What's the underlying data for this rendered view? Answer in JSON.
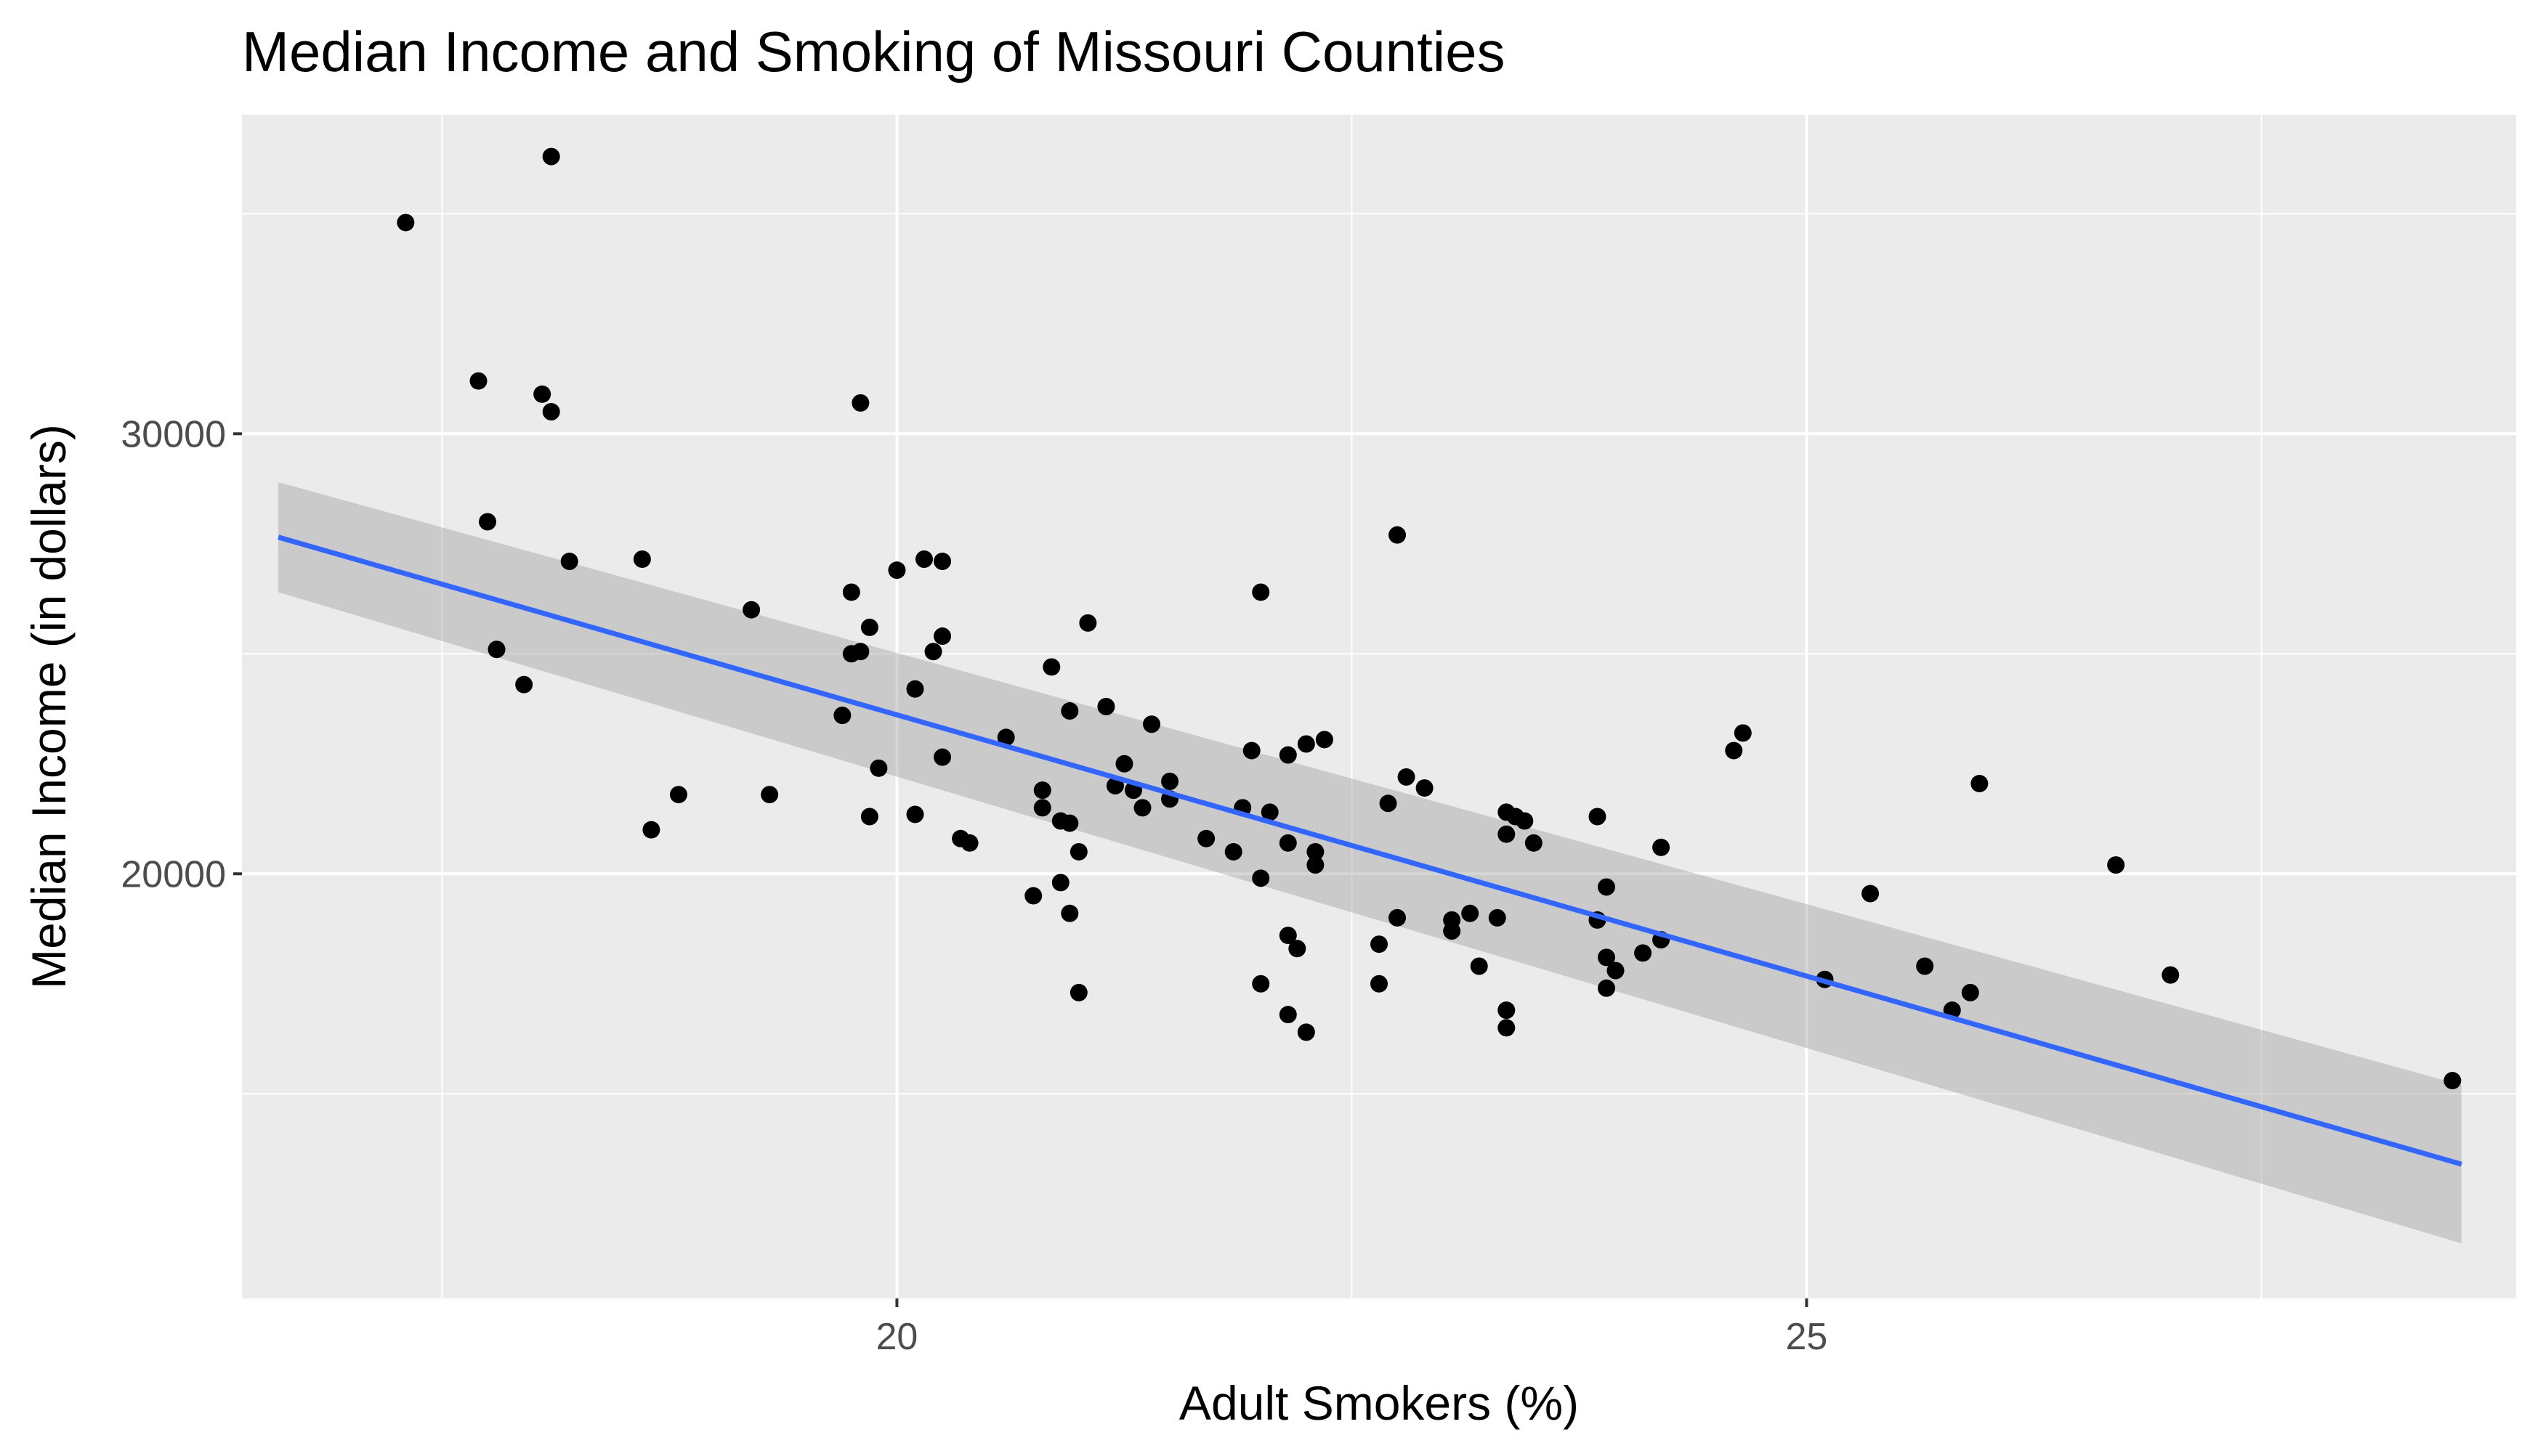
{
  "chart_data": {
    "type": "scatter",
    "title": "Median Income and Smoking of Missouri Counties",
    "xlabel": "Adult Smokers (%)",
    "ylabel": "Median Income (in dollars)",
    "xlim": [
      16.4,
      28.9
    ],
    "ylim": [
      10350,
      37250
    ],
    "x_ticks": [
      20,
      25
    ],
    "x_minor_ticks": [
      17.5,
      22.5,
      27.5
    ],
    "y_ticks": [
      20000,
      30000
    ],
    "y_minor_ticks": [
      15000,
      25000,
      35000
    ],
    "grid": true,
    "legend": "none",
    "colors": {
      "panel": "#EBEBEB",
      "grid": "#FFFFFF",
      "points": "#000000",
      "fit_line": "#3366FF",
      "confidence_band": "#999999"
    },
    "fit": {
      "method": "linear",
      "x_range": [
        16.6,
        28.6
      ],
      "y_at_ends": [
        27650,
        13400
      ],
      "ci_lower": [
        26400,
        11600
      ],
      "ci_upper": [
        28900,
        15200
      ]
    },
    "points": [
      {
        "x": 17.3,
        "y": 34800
      },
      {
        "x": 18.1,
        "y": 36300
      },
      {
        "x": 17.7,
        "y": 31200
      },
      {
        "x": 18.05,
        "y": 30900
      },
      {
        "x": 18.1,
        "y": 30500
      },
      {
        "x": 19.8,
        "y": 30700
      },
      {
        "x": 17.75,
        "y": 28000
      },
      {
        "x": 18.2,
        "y": 27100
      },
      {
        "x": 18.6,
        "y": 27150
      },
      {
        "x": 17.8,
        "y": 25100
      },
      {
        "x": 17.95,
        "y": 24300
      },
      {
        "x": 19.2,
        "y": 26000
      },
      {
        "x": 19.75,
        "y": 26400
      },
      {
        "x": 20.0,
        "y": 26900
      },
      {
        "x": 20.15,
        "y": 27150
      },
      {
        "x": 20.25,
        "y": 27100
      },
      {
        "x": 19.85,
        "y": 25600
      },
      {
        "x": 20.25,
        "y": 25400
      },
      {
        "x": 20.2,
        "y": 25050
      },
      {
        "x": 19.8,
        "y": 25050
      },
      {
        "x": 19.75,
        "y": 25000
      },
      {
        "x": 20.1,
        "y": 24200
      },
      {
        "x": 19.7,
        "y": 23600
      },
      {
        "x": 19.9,
        "y": 22400
      },
      {
        "x": 20.25,
        "y": 22650
      },
      {
        "x": 20.6,
        "y": 23100
      },
      {
        "x": 18.65,
        "y": 21000
      },
      {
        "x": 18.8,
        "y": 21800
      },
      {
        "x": 19.3,
        "y": 21800
      },
      {
        "x": 19.85,
        "y": 21300
      },
      {
        "x": 20.1,
        "y": 21350
      },
      {
        "x": 20.35,
        "y": 20800
      },
      {
        "x": 20.4,
        "y": 20700
      },
      {
        "x": 20.8,
        "y": 21900
      },
      {
        "x": 20.8,
        "y": 21500
      },
      {
        "x": 20.9,
        "y": 21200
      },
      {
        "x": 20.95,
        "y": 21150
      },
      {
        "x": 21.0,
        "y": 20500
      },
      {
        "x": 20.75,
        "y": 19500
      },
      {
        "x": 20.9,
        "y": 19800
      },
      {
        "x": 20.95,
        "y": 19100
      },
      {
        "x": 21.0,
        "y": 17300
      },
      {
        "x": 20.85,
        "y": 24700
      },
      {
        "x": 20.95,
        "y": 23700
      },
      {
        "x": 21.15,
        "y": 23800
      },
      {
        "x": 21.05,
        "y": 25700
      },
      {
        "x": 21.4,
        "y": 23400
      },
      {
        "x": 21.2,
        "y": 22000
      },
      {
        "x": 21.25,
        "y": 22500
      },
      {
        "x": 21.3,
        "y": 21900
      },
      {
        "x": 21.35,
        "y": 21500
      },
      {
        "x": 21.5,
        "y": 21700
      },
      {
        "x": 21.5,
        "y": 22100
      },
      {
        "x": 21.7,
        "y": 20800
      },
      {
        "x": 21.85,
        "y": 20500
      },
      {
        "x": 22.0,
        "y": 26400
      },
      {
        "x": 21.95,
        "y": 22800
      },
      {
        "x": 22.15,
        "y": 22700
      },
      {
        "x": 22.25,
        "y": 22950
      },
      {
        "x": 22.35,
        "y": 23050
      },
      {
        "x": 21.9,
        "y": 21500
      },
      {
        "x": 22.05,
        "y": 21400
      },
      {
        "x": 22.15,
        "y": 20700
      },
      {
        "x": 22.3,
        "y": 20500
      },
      {
        "x": 22.3,
        "y": 20200
      },
      {
        "x": 22.0,
        "y": 19900
      },
      {
        "x": 22.15,
        "y": 18600
      },
      {
        "x": 22.2,
        "y": 18300
      },
      {
        "x": 22.0,
        "y": 17500
      },
      {
        "x": 22.15,
        "y": 16800
      },
      {
        "x": 22.25,
        "y": 16400
      },
      {
        "x": 22.75,
        "y": 27700
      },
      {
        "x": 22.8,
        "y": 22200
      },
      {
        "x": 22.9,
        "y": 21950
      },
      {
        "x": 22.7,
        "y": 21600
      },
      {
        "x": 22.65,
        "y": 18400
      },
      {
        "x": 22.75,
        "y": 19000
      },
      {
        "x": 22.65,
        "y": 17500
      },
      {
        "x": 23.05,
        "y": 18700
      },
      {
        "x": 23.05,
        "y": 18950
      },
      {
        "x": 23.15,
        "y": 19100
      },
      {
        "x": 23.2,
        "y": 17900
      },
      {
        "x": 23.3,
        "y": 19000
      },
      {
        "x": 23.35,
        "y": 21400
      },
      {
        "x": 23.4,
        "y": 21300
      },
      {
        "x": 23.45,
        "y": 21200
      },
      {
        "x": 23.35,
        "y": 20900
      },
      {
        "x": 23.5,
        "y": 20700
      },
      {
        "x": 23.35,
        "y": 16900
      },
      {
        "x": 23.35,
        "y": 16500
      },
      {
        "x": 23.85,
        "y": 21300
      },
      {
        "x": 23.85,
        "y": 18950
      },
      {
        "x": 23.9,
        "y": 19700
      },
      {
        "x": 23.9,
        "y": 18100
      },
      {
        "x": 23.95,
        "y": 17800
      },
      {
        "x": 23.9,
        "y": 17400
      },
      {
        "x": 24.1,
        "y": 18200
      },
      {
        "x": 24.2,
        "y": 18500
      },
      {
        "x": 24.2,
        "y": 20600
      },
      {
        "x": 24.6,
        "y": 22800
      },
      {
        "x": 24.65,
        "y": 23200
      },
      {
        "x": 25.1,
        "y": 17600
      },
      {
        "x": 25.35,
        "y": 19550
      },
      {
        "x": 25.65,
        "y": 17900
      },
      {
        "x": 25.95,
        "y": 22050
      },
      {
        "x": 25.8,
        "y": 16900
      },
      {
        "x": 25.9,
        "y": 17300
      },
      {
        "x": 26.7,
        "y": 20200
      },
      {
        "x": 27.0,
        "y": 17700
      },
      {
        "x": 28.55,
        "y": 15300
      }
    ]
  }
}
